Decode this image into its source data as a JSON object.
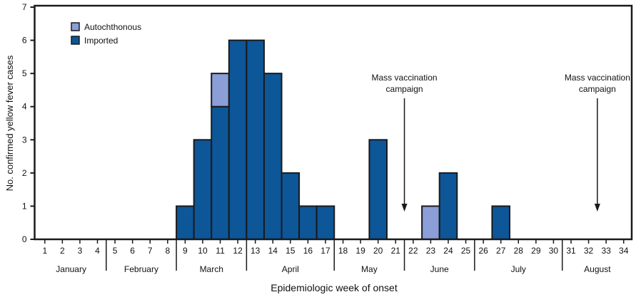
{
  "chart_data": {
    "type": "bar",
    "stacked": true,
    "title": "",
    "xlabel": "Epidemiologic week of onset",
    "ylabel": "No. confirmed yellow fever cases",
    "ylim": [
      0,
      7
    ],
    "yticks": [
      0,
      1,
      2,
      3,
      4,
      5,
      6,
      7
    ],
    "grid": false,
    "legend_position": "top-left",
    "categories": [
      "1",
      "2",
      "3",
      "4",
      "5",
      "6",
      "7",
      "8",
      "9",
      "10",
      "11",
      "12",
      "13",
      "14",
      "15",
      "16",
      "17",
      "18",
      "19",
      "20",
      "21",
      "22",
      "23",
      "24",
      "25",
      "26",
      "27",
      "28",
      "29",
      "30",
      "31",
      "32",
      "33",
      "34"
    ],
    "months": [
      {
        "label": "January",
        "weeks": [
          1,
          4
        ]
      },
      {
        "label": "February",
        "weeks": [
          5,
          8
        ]
      },
      {
        "label": "March",
        "weeks": [
          9,
          12
        ]
      },
      {
        "label": "April",
        "weeks": [
          13,
          17
        ]
      },
      {
        "label": "May",
        "weeks": [
          18,
          21
        ]
      },
      {
        "label": "June",
        "weeks": [
          22,
          25
        ]
      },
      {
        "label": "July",
        "weeks": [
          26,
          30
        ]
      },
      {
        "label": "August",
        "weeks": [
          31,
          34
        ]
      }
    ],
    "series": [
      {
        "name": "Imported",
        "color": "#0d5698",
        "values": [
          0,
          0,
          0,
          0,
          0,
          0,
          0,
          0,
          1,
          3,
          4,
          6,
          6,
          5,
          2,
          1,
          1,
          0,
          0,
          3,
          0,
          0,
          0,
          2,
          0,
          0,
          1,
          0,
          0,
          0,
          0,
          0,
          0,
          0
        ]
      },
      {
        "name": "Autochthonous",
        "color": "#8b9ed8",
        "values": [
          0,
          0,
          0,
          0,
          0,
          0,
          0,
          0,
          0,
          0,
          1,
          0,
          0,
          0,
          0,
          0,
          0,
          0,
          0,
          0,
          0,
          0,
          1,
          0,
          0,
          0,
          0,
          0,
          0,
          0,
          0,
          0,
          0,
          0
        ]
      }
    ],
    "legend_order": [
      "Autochthonous",
      "Imported"
    ],
    "annotations": [
      {
        "text_lines": [
          "Mass vaccination",
          "campaign"
        ],
        "between_weeks": [
          21,
          22
        ]
      },
      {
        "text_lines": [
          "Mass vaccination",
          "campaign"
        ],
        "between_weeks": [
          32,
          33
        ]
      }
    ]
  }
}
